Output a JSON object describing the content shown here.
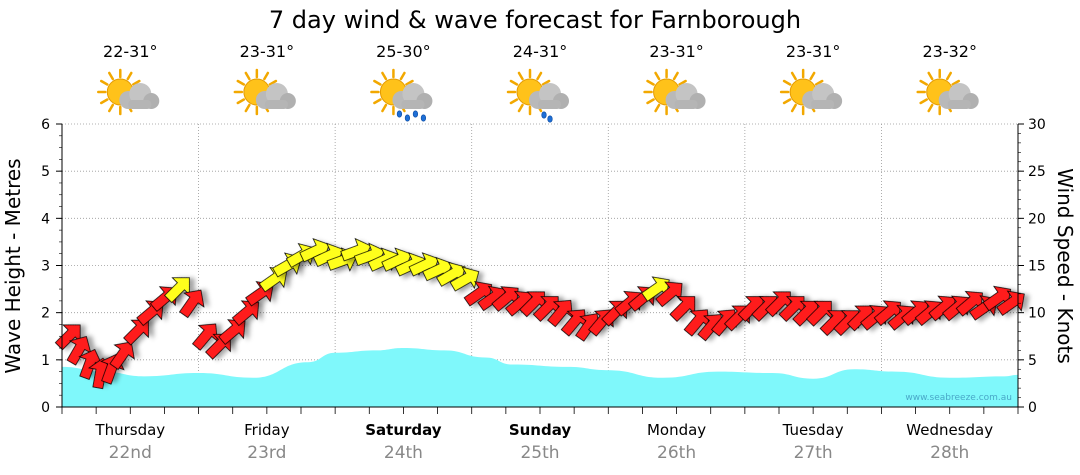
{
  "page": {
    "title": "7 day wind & wave forecast for Farnborough",
    "watermark": "www.seabreeze.com.au"
  },
  "colors": {
    "wave_fill": "#7ff8fb",
    "wind_strong": "#ff1a1a",
    "wind_moderate": "#ffff1a",
    "grid": "#999999"
  },
  "days": [
    {
      "name": "Thursday",
      "date": "22nd",
      "temp": "22-31°",
      "icon": "sun-cloud-icon",
      "bold": false
    },
    {
      "name": "Friday",
      "date": "23rd",
      "temp": "23-31°",
      "icon": "sun-cloud-icon",
      "bold": false
    },
    {
      "name": "Saturday",
      "date": "24th",
      "temp": "25-30°",
      "icon": "sun-cloud-rain-icon",
      "bold": true
    },
    {
      "name": "Sunday",
      "date": "25th",
      "temp": "24-31°",
      "icon": "sun-cloud-light-rain-icon",
      "bold": true
    },
    {
      "name": "Monday",
      "date": "26th",
      "temp": "23-31°",
      "icon": "sun-cloud-icon",
      "bold": false
    },
    {
      "name": "Tuesday",
      "date": "27th",
      "temp": "23-31°",
      "icon": "sun-cloud-icon",
      "bold": false
    },
    {
      "name": "Wednesday",
      "date": "28th",
      "temp": "23-32°",
      "icon": "sun-cloud-icon",
      "bold": false
    }
  ],
  "chart_data": {
    "type": "area",
    "left_axis": {
      "label": "Wave Height - Metres",
      "min": 0,
      "max": 6,
      "ticks": [
        0,
        1,
        2,
        3,
        4,
        5,
        6
      ]
    },
    "right_axis": {
      "label": "Wind Speed - Knots",
      "min": 0,
      "max": 30,
      "ticks": [
        0,
        5,
        10,
        15,
        20,
        25,
        30
      ]
    },
    "grid": true,
    "x_unit": "day index (0 = Thursday 00:00)",
    "wave_height": {
      "x": [
        0,
        0.3,
        0.6,
        1.0,
        1.4,
        1.8,
        2.0,
        2.3,
        2.5,
        2.8,
        3.1,
        3.3,
        3.7,
        4.0,
        4.4,
        4.8,
        5.2,
        5.5,
        5.8,
        6.1,
        6.5,
        6.9,
        7.0
      ],
      "y": [
        0.85,
        0.75,
        0.65,
        0.72,
        0.62,
        0.95,
        1.15,
        1.2,
        1.25,
        1.2,
        1.05,
        0.9,
        0.85,
        0.78,
        0.62,
        0.75,
        0.72,
        0.6,
        0.8,
        0.75,
        0.62,
        0.65,
        0.68
      ]
    },
    "wind": {
      "x": [
        0.05,
        0.12,
        0.2,
        0.28,
        0.36,
        0.44,
        0.55,
        0.65,
        0.75,
        0.85,
        0.95,
        1.05,
        1.15,
        1.25,
        1.35,
        1.45,
        1.55,
        1.65,
        1.75,
        1.85,
        1.95,
        2.05,
        2.15,
        2.25,
        2.35,
        2.45,
        2.55,
        2.65,
        2.75,
        2.85,
        2.95,
        3.05,
        3.15,
        3.25,
        3.35,
        3.45,
        3.55,
        3.65,
        3.75,
        3.85,
        3.95,
        4.05,
        4.15,
        4.25,
        4.35,
        4.45,
        4.55,
        4.65,
        4.75,
        4.85,
        4.95,
        5.05,
        5.15,
        5.25,
        5.35,
        5.45,
        5.55,
        5.65,
        5.75,
        5.85,
        5.95,
        6.05,
        6.15,
        6.25,
        6.35,
        6.45,
        6.55,
        6.65,
        6.75,
        6.85,
        6.95
      ],
      "y": [
        7.5,
        6.0,
        4.5,
        3.5,
        4.0,
        5.5,
        8.0,
        10.0,
        11.5,
        12.5,
        11.0,
        7.5,
        6.5,
        8.0,
        10.0,
        12.0,
        13.5,
        15.0,
        16.0,
        16.5,
        16.0,
        15.5,
        16.5,
        16.0,
        15.5,
        15.5,
        15.0,
        15.0,
        14.5,
        14.0,
        13.5,
        12.0,
        11.5,
        11.5,
        11.0,
        11.0,
        10.5,
        10.0,
        9.0,
        8.5,
        9.0,
        10.0,
        11.0,
        11.5,
        12.5,
        12.0,
        10.5,
        9.0,
        8.5,
        9.0,
        9.5,
        10.5,
        10.5,
        11.0,
        10.5,
        10.0,
        10.0,
        9.0,
        9.0,
        9.5,
        9.5,
        10.0,
        9.5,
        10.0,
        10.0,
        10.5,
        10.5,
        11.0,
        10.5,
        11.5,
        11.0
      ],
      "direction_deg": [
        225,
        210,
        200,
        190,
        200,
        215,
        225,
        230,
        230,
        225,
        215,
        220,
        225,
        230,
        230,
        235,
        235,
        240,
        240,
        245,
        245,
        250,
        250,
        250,
        245,
        245,
        245,
        245,
        245,
        240,
        240,
        235,
        235,
        230,
        230,
        225,
        225,
        220,
        220,
        215,
        220,
        225,
        230,
        230,
        235,
        230,
        225,
        220,
        220,
        220,
        225,
        225,
        225,
        225,
        225,
        225,
        225,
        225,
        225,
        225,
        230,
        230,
        230,
        230,
        230,
        230,
        230,
        230,
        235,
        235,
        235
      ],
      "moderate_threshold": 12.5
    }
  }
}
